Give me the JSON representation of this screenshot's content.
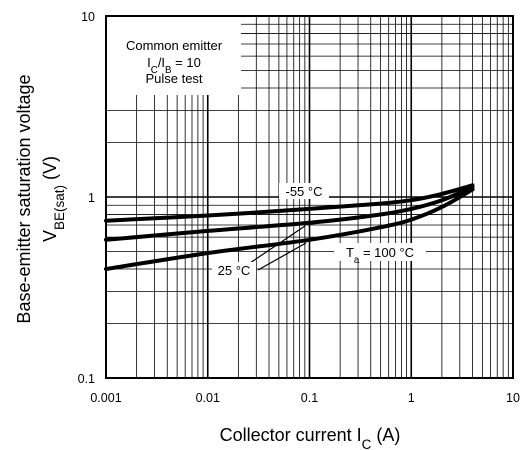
{
  "chart_data": {
    "type": "line",
    "x_scale": "log",
    "y_scale": "log",
    "xlim": [
      0.001,
      10
    ],
    "ylim": [
      0.1,
      10
    ],
    "grid": true,
    "x_ticks": [
      "0.001",
      "0.01",
      "0.1",
      "1",
      "10"
    ],
    "y_ticks": [
      "0.1",
      "1",
      "10"
    ],
    "xlabel": {
      "main": "Collector current  I",
      "sub": "C",
      "unit": "  (A)"
    },
    "ylabel": {
      "line1": "Base-emitter saturation voltage",
      "main": "V",
      "sub": "BE(sat)",
      "unit": "  (V)"
    },
    "conditions": [
      {
        "main": "Common emitter"
      },
      {
        "main": "I",
        "sub": "C",
        "main2": "/I",
        "sub2": "B",
        "main3": " = 10"
      },
      {
        "main": "Pulse test"
      }
    ],
    "series": [
      {
        "name": "-55 °C",
        "x": [
          0.001,
          0.01,
          0.1,
          0.5,
          1,
          2,
          4
        ],
        "y": [
          0.74,
          0.79,
          0.86,
          0.92,
          0.96,
          1.04,
          1.16
        ]
      },
      {
        "name": "25 °C",
        "x": [
          0.001,
          0.01,
          0.1,
          0.5,
          1,
          2,
          4
        ],
        "y": [
          0.58,
          0.65,
          0.72,
          0.8,
          0.86,
          0.96,
          1.13
        ]
      },
      {
        "name": "T_a = 100 °C",
        "x": [
          0.001,
          0.01,
          0.1,
          0.5,
          1,
          2,
          4
        ],
        "y": [
          0.4,
          0.49,
          0.58,
          0.68,
          0.75,
          0.88,
          1.1
        ]
      }
    ],
    "annotations": [
      {
        "label": "-55 °C"
      },
      {
        "label": "25 °C"
      },
      {
        "main": "T",
        "sub": "a",
        "rest": " = 100 °C"
      }
    ]
  }
}
